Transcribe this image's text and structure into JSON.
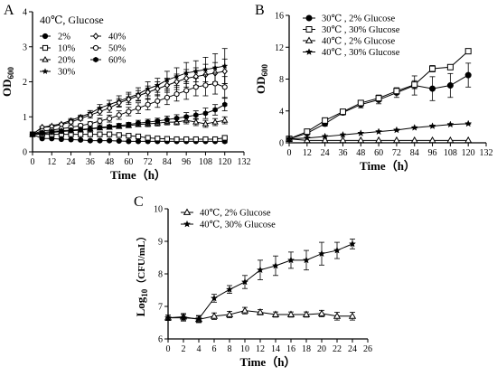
{
  "figure_letters": [
    "A",
    "B",
    "C"
  ],
  "chart_data": [
    {
      "panel": "A",
      "type": "line",
      "legend_title": "40℃, Glucose",
      "legend_position": "top-left",
      "xlabel": "Time（h）",
      "ylabel_main": "OD",
      "ylabel_sub": "600",
      "xlim": [
        0,
        132
      ],
      "ylim": [
        0,
        4
      ],
      "xticks": [
        0,
        12,
        24,
        36,
        48,
        60,
        72,
        84,
        96,
        108,
        120,
        132
      ],
      "yticks": [
        0,
        1,
        2,
        3,
        4
      ],
      "x": [
        0,
        6,
        12,
        18,
        24,
        30,
        36,
        42,
        48,
        54,
        60,
        66,
        72,
        78,
        84,
        90,
        96,
        102,
        108,
        114,
        120
      ],
      "series": [
        {
          "name": "2%",
          "marker": "circle-filled",
          "values": [
            0.5,
            0.38,
            0.38,
            0.36,
            0.35,
            0.34,
            0.32,
            0.32,
            0.32,
            0.31,
            0.3,
            0.3,
            0.3,
            0.3,
            0.3,
            0.3,
            0.3,
            0.3,
            0.3,
            0.3,
            0.3
          ],
          "err": [
            0,
            0,
            0,
            0,
            0,
            0,
            0,
            0,
            0,
            0,
            0,
            0,
            0,
            0,
            0,
            0,
            0,
            0,
            0,
            0,
            0.04
          ]
        },
        {
          "name": "10%",
          "marker": "square-open",
          "values": [
            0.5,
            0.5,
            0.5,
            0.5,
            0.5,
            0.5,
            0.5,
            0.5,
            0.5,
            0.48,
            0.46,
            0.44,
            0.4,
            0.38,
            0.37,
            0.36,
            0.36,
            0.36,
            0.36,
            0.36,
            0.4
          ],
          "err": [
            0,
            0,
            0,
            0,
            0,
            0,
            0,
            0,
            0,
            0,
            0,
            0,
            0,
            0,
            0,
            0,
            0,
            0,
            0,
            0,
            0.05
          ]
        },
        {
          "name": "20%",
          "marker": "triangle-open",
          "values": [
            0.5,
            0.52,
            0.55,
            0.58,
            0.6,
            0.62,
            0.65,
            0.68,
            0.7,
            0.72,
            0.75,
            0.78,
            0.8,
            0.82,
            0.85,
            0.85,
            0.9,
            0.85,
            0.8,
            0.85,
            0.9
          ],
          "err": [
            0,
            0,
            0,
            0,
            0,
            0,
            0,
            0,
            0.05,
            0.05,
            0.06,
            0.06,
            0.08,
            0.08,
            0.08,
            0.08,
            0.1,
            0.1,
            0.1,
            0.1,
            0.1
          ]
        },
        {
          "name": "30%",
          "marker": "star",
          "values": [
            0.5,
            0.7,
            0.75,
            0.8,
            0.9,
            1.0,
            1.1,
            1.25,
            1.35,
            1.45,
            1.55,
            1.65,
            1.8,
            1.9,
            2.05,
            2.15,
            2.25,
            2.3,
            2.35,
            2.4,
            2.45
          ],
          "err": [
            0,
            0,
            0,
            0,
            0.05,
            0.05,
            0.08,
            0.1,
            0.12,
            0.15,
            0.15,
            0.18,
            0.2,
            0.2,
            0.25,
            0.25,
            0.3,
            0.3,
            0.35,
            0.4,
            0.5
          ]
        },
        {
          "name": "40%",
          "marker": "diamond-open",
          "values": [
            0.5,
            0.7,
            0.72,
            0.78,
            0.85,
            0.95,
            1.05,
            1.15,
            1.25,
            1.4,
            1.5,
            1.6,
            1.7,
            1.8,
            1.9,
            2.0,
            2.1,
            2.15,
            2.2,
            2.25,
            2.3
          ],
          "err": [
            0,
            0,
            0,
            0,
            0.05,
            0.05,
            0.08,
            0.1,
            0.12,
            0.12,
            0.15,
            0.15,
            0.18,
            0.2,
            0.2,
            0.22,
            0.25,
            0.25,
            0.3,
            0.3,
            0.35
          ]
        },
        {
          "name": "50%",
          "marker": "circle-open",
          "values": [
            0.5,
            0.6,
            0.62,
            0.66,
            0.7,
            0.75,
            0.8,
            0.88,
            0.95,
            1.05,
            1.15,
            1.25,
            1.35,
            1.45,
            1.55,
            1.65,
            1.75,
            1.85,
            1.9,
            1.95,
            1.85
          ],
          "err": [
            0,
            0,
            0,
            0,
            0.05,
            0.05,
            0.06,
            0.08,
            0.1,
            0.12,
            0.12,
            0.15,
            0.15,
            0.18,
            0.2,
            0.2,
            0.25,
            0.25,
            0.3,
            0.3,
            0.3
          ]
        },
        {
          "name": "60%",
          "marker": "hexagon-filled",
          "values": [
            0.5,
            0.55,
            0.58,
            0.6,
            0.62,
            0.64,
            0.66,
            0.7,
            0.72,
            0.75,
            0.78,
            0.82,
            0.85,
            0.88,
            0.92,
            0.96,
            1.0,
            1.05,
            1.1,
            1.2,
            1.35
          ],
          "err": [
            0,
            0,
            0,
            0,
            0,
            0,
            0.04,
            0.05,
            0.05,
            0.06,
            0.06,
            0.08,
            0.08,
            0.08,
            0.1,
            0.1,
            0.12,
            0.12,
            0.15,
            0.15,
            0.18
          ]
        }
      ]
    },
    {
      "panel": "B",
      "type": "line",
      "legend_position": "top-left",
      "xlabel": "Time（h）",
      "ylabel_main": "OD",
      "ylabel_sub": "600",
      "xlim": [
        0,
        132
      ],
      "ylim": [
        0,
        16
      ],
      "xticks": [
        0,
        12,
        24,
        36,
        48,
        60,
        72,
        84,
        96,
        108,
        120,
        132
      ],
      "yticks": [
        0,
        4,
        8,
        12,
        16
      ],
      "x": [
        0,
        12,
        24,
        36,
        48,
        60,
        72,
        84,
        96,
        108,
        120
      ],
      "series": [
        {
          "name": "30℃ , 2% Glucose",
          "marker": "circle-filled",
          "values": [
            0.5,
            1.2,
            2.4,
            3.8,
            4.8,
            5.4,
            6.3,
            7.2,
            6.8,
            7.2,
            8.5
          ],
          "err": [
            0.05,
            0.1,
            0.3,
            0.3,
            0.4,
            0.5,
            0.6,
            1.2,
            1.5,
            1.5,
            1.5
          ]
        },
        {
          "name": "30℃ , 30% Glucose",
          "marker": "square-open",
          "values": [
            0.5,
            1.4,
            2.8,
            3.9,
            5.0,
            5.6,
            6.5,
            7.3,
            9.3,
            9.5,
            11.5
          ],
          "err": [
            0.05,
            0.1,
            0.2,
            0.3,
            0.3,
            0.4,
            0.4,
            0.5,
            0.4,
            0.3,
            0.3
          ]
        },
        {
          "name": "40℃ , 2% Glucose",
          "marker": "triangle-open",
          "values": [
            0.5,
            0.3,
            0.3,
            0.3,
            0.3,
            0.3,
            0.3,
            0.3,
            0.3,
            0.3,
            0.3
          ],
          "err": [
            0,
            0,
            0,
            0,
            0,
            0,
            0,
            0,
            0,
            0,
            0
          ]
        },
        {
          "name": "40℃ , 30% Glucose",
          "marker": "star",
          "values": [
            0.5,
            0.6,
            0.8,
            1.0,
            1.2,
            1.4,
            1.6,
            1.9,
            2.1,
            2.3,
            2.4
          ],
          "err": [
            0,
            0,
            0,
            0,
            0,
            0,
            0.05,
            0.05,
            0.05,
            0.05,
            0.05
          ]
        }
      ]
    },
    {
      "panel": "C",
      "type": "line",
      "legend_position": "top-left",
      "xlabel": "Time（h）",
      "ylabel_main": "Log",
      "ylabel_sub": "10",
      "ylabel_rest": "（CFU/mL）",
      "xlim": [
        0,
        26
      ],
      "ylim": [
        6,
        10
      ],
      "xticks": [
        0,
        2,
        4,
        6,
        8,
        10,
        12,
        14,
        16,
        18,
        20,
        22,
        24,
        26
      ],
      "yticks": [
        6,
        7,
        8,
        9,
        10
      ],
      "series": [
        {
          "name": "40℃, 2% Glucose",
          "marker": "triangle-open",
          "x": [
            0,
            2,
            4,
            6,
            8,
            10,
            12,
            14,
            16,
            18,
            20,
            22,
            24
          ],
          "values": [
            6.65,
            6.68,
            6.6,
            6.7,
            6.75,
            6.87,
            6.82,
            6.75,
            6.75,
            6.75,
            6.78,
            6.7,
            6.7
          ],
          "err": [
            0.08,
            0.1,
            0.1,
            0.1,
            0.1,
            0.1,
            0.08,
            0.08,
            0.08,
            0.08,
            0.1,
            0.12,
            0.12
          ]
        },
        {
          "name": "40℃, 30% Glucose",
          "marker": "star",
          "x": [
            0,
            2,
            4,
            6,
            8,
            10,
            12,
            14,
            16,
            18,
            20,
            22,
            24
          ],
          "values": [
            6.65,
            6.65,
            6.62,
            7.25,
            7.52,
            7.75,
            8.12,
            8.25,
            8.42,
            8.42,
            8.62,
            8.72,
            8.92
          ],
          "err": [
            0.08,
            0.1,
            0.1,
            0.12,
            0.12,
            0.2,
            0.3,
            0.3,
            0.25,
            0.3,
            0.35,
            0.25,
            0.15
          ]
        }
      ]
    }
  ]
}
